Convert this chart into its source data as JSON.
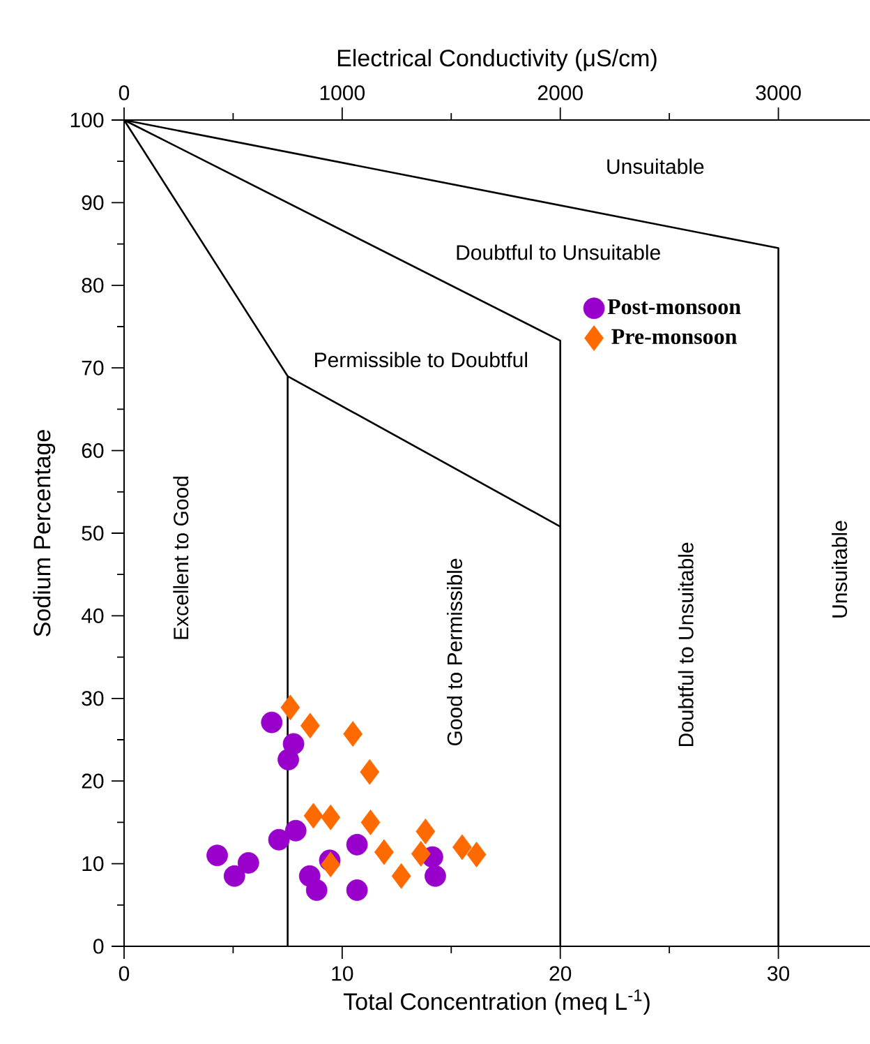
{
  "chart_data": {
    "type": "scatter",
    "xlabel": "Total Concentration (meq L$^{-1}$)",
    "ylabel": "Sodium Percentage",
    "x2label": "Electrical Conductivity (μS/cm)",
    "xlim": [
      0,
      34.2
    ],
    "ylim": [
      0,
      100
    ],
    "x2lim": [
      0,
      3420
    ],
    "xticks": [
      0,
      {
        "value": 5,
        "label": null
      },
      10,
      {
        "value": 15,
        "label": null
      },
      20,
      {
        "value": 25,
        "label": null
      },
      30
    ],
    "x2ticks": [
      0,
      {
        "value": 500,
        "label": null
      },
      1000,
      {
        "value": 1500,
        "label": null
      },
      2000,
      {
        "value": 2500,
        "label": null
      },
      3000
    ],
    "yticks": [
      0,
      {
        "value": 5,
        "label": null
      },
      10,
      {
        "value": 15,
        "label": null
      },
      20,
      {
        "value": 25,
        "label": null
      },
      30,
      {
        "value": 35,
        "label": null
      },
      40,
      {
        "value": 45,
        "label": null
      },
      50,
      {
        "value": 55,
        "label": null
      },
      60,
      {
        "value": 65,
        "label": null
      },
      70,
      {
        "value": 75,
        "label": null
      },
      80,
      {
        "value": 85,
        "label": null
      },
      90,
      {
        "value": 95,
        "label": null
      },
      100
    ],
    "legend": "top right",
    "series": [
      {
        "name": "Post-monsoon",
        "marker": "circle",
        "color": "#9900cc",
        "x": [
          6.77,
          7.77,
          7.53,
          7.87,
          7.1,
          4.27,
          5.7,
          5.06,
          9.43,
          10.68,
          8.51,
          8.83,
          10.68,
          14.14,
          14.27
        ],
        "values": [
          27.1,
          24.5,
          22.6,
          14.0,
          12.9,
          11.0,
          10.1,
          8.5,
          10.4,
          12.3,
          8.5,
          6.8,
          6.8,
          10.8,
          8.5
        ]
      },
      {
        "name": "Pre-monsoon",
        "marker": "diamond",
        "color": "#ff6a00",
        "x": [
          7.62,
          8.53,
          10.49,
          11.26,
          8.68,
          9.47,
          11.3,
          13.82,
          9.47,
          11.92,
          13.61,
          12.71,
          15.5,
          16.16
        ],
        "values": [
          28.9,
          26.7,
          25.7,
          21.1,
          15.8,
          15.6,
          15.0,
          13.9,
          9.9,
          11.4,
          11.2,
          8.5,
          12.0,
          11.1
        ]
      },
      {
        "type": "line",
        "color": "#000000",
        "x": [
          0,
          7.5,
          7.5
        ],
        "values": [
          100,
          69,
          0
        ]
      },
      {
        "type": "line",
        "color": "#000000",
        "x": [
          0,
          20,
          20
        ],
        "values": [
          100,
          73.3,
          0
        ]
      },
      {
        "type": "line",
        "color": "#000000",
        "x": [
          0,
          30,
          30
        ],
        "values": [
          100,
          84.5,
          0
        ]
      },
      {
        "type": "line",
        "color": "#000000",
        "x": [
          7.5,
          20
        ],
        "values": [
          69,
          50.8
        ]
      }
    ],
    "annotations": [
      "Unsuitable",
      "Doubtful to Unsuitable",
      "Permissible to Doubtful",
      "Excellent to Good",
      "Good to Permissible",
      "Doubtful to Unsuitable",
      "Unsuitable"
    ]
  }
}
